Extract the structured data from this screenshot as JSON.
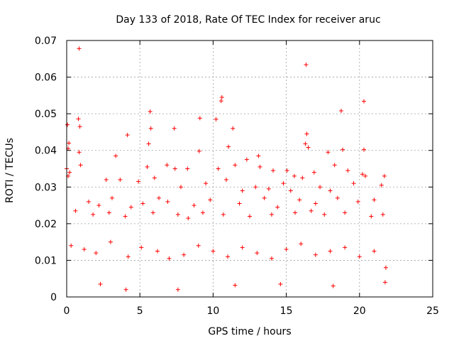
{
  "chart_data": {
    "type": "scatter",
    "title": "Day 133 of 2018, Rate Of TEC Index for receiver aruc",
    "xlabel": "GPS time / hours",
    "ylabel": "ROTI / TECUs",
    "xlim": [
      0,
      25
    ],
    "ylim": [
      0,
      0.07
    ],
    "xticks": [
      "0",
      "5",
      "10",
      "15",
      "20",
      "25"
    ],
    "yticks": [
      "0",
      "0.01",
      "0.02",
      "0.03",
      "0.04",
      "0.05",
      "0.06",
      "0.07"
    ],
    "grid": true,
    "marker": "+",
    "color": "#ff0000",
    "series": [
      {
        "points": [
          [
            0.85,
            0.0678
          ],
          [
            16.35,
            0.0634
          ],
          [
            10.6,
            0.0545
          ],
          [
            10.55,
            0.0535
          ],
          [
            5.7,
            0.0506
          ],
          [
            18.75,
            0.0508
          ],
          [
            20.3,
            0.0534
          ],
          [
            9.1,
            0.0488
          ],
          [
            0.8,
            0.0486
          ],
          [
            10.2,
            0.0485
          ],
          [
            0.9,
            0.0465
          ],
          [
            4.15,
            0.0442
          ],
          [
            7.35,
            0.046
          ],
          [
            11.35,
            0.046
          ],
          [
            5.75,
            0.046
          ],
          [
            16.4,
            0.0445
          ],
          [
            0.15,
            0.042
          ],
          [
            0.1,
            0.0405
          ],
          [
            0.05,
            0.047
          ],
          [
            5.6,
            0.0418
          ],
          [
            9.05,
            0.0398
          ],
          [
            11.05,
            0.041
          ],
          [
            16.3,
            0.0418
          ],
          [
            16.5,
            0.0408
          ],
          [
            18.85,
            0.0402
          ],
          [
            20.3,
            0.0402
          ],
          [
            3.35,
            0.0385
          ],
          [
            13.1,
            0.0385
          ],
          [
            17.85,
            0.0395
          ],
          [
            0.85,
            0.0395
          ],
          [
            0.0,
            0.035
          ],
          [
            0.2,
            0.034
          ],
          [
            0.1,
            0.033
          ],
          [
            0.95,
            0.036
          ],
          [
            5.5,
            0.0355
          ],
          [
            6.85,
            0.036
          ],
          [
            7.4,
            0.035
          ],
          [
            8.25,
            0.035
          ],
          [
            10.35,
            0.035
          ],
          [
            11.5,
            0.036
          ],
          [
            12.3,
            0.0375
          ],
          [
            13.2,
            0.0355
          ],
          [
            14.1,
            0.0345
          ],
          [
            15.05,
            0.0345
          ],
          [
            15.55,
            0.033
          ],
          [
            16.9,
            0.034
          ],
          [
            18.3,
            0.036
          ],
          [
            19.2,
            0.0345
          ],
          [
            20.2,
            0.0335
          ],
          [
            20.4,
            0.033
          ],
          [
            21.7,
            0.033
          ],
          [
            2.7,
            0.032
          ],
          [
            3.65,
            0.032
          ],
          [
            4.9,
            0.0315
          ],
          [
            6.0,
            0.0325
          ],
          [
            7.8,
            0.03
          ],
          [
            9.5,
            0.031
          ],
          [
            10.9,
            0.032
          ],
          [
            12.0,
            0.029
          ],
          [
            12.9,
            0.03
          ],
          [
            13.8,
            0.0295
          ],
          [
            14.8,
            0.031
          ],
          [
            15.3,
            0.029
          ],
          [
            16.1,
            0.0325
          ],
          [
            17.3,
            0.03
          ],
          [
            18.0,
            0.029
          ],
          [
            19.6,
            0.031
          ],
          [
            21.5,
            0.0305
          ],
          [
            1.5,
            0.026
          ],
          [
            2.2,
            0.025
          ],
          [
            3.1,
            0.027
          ],
          [
            4.4,
            0.0245
          ],
          [
            5.2,
            0.0255
          ],
          [
            6.3,
            0.027
          ],
          [
            6.9,
            0.026
          ],
          [
            8.7,
            0.025
          ],
          [
            9.8,
            0.0265
          ],
          [
            11.8,
            0.0255
          ],
          [
            13.5,
            0.027
          ],
          [
            14.4,
            0.0245
          ],
          [
            15.9,
            0.0265
          ],
          [
            17.0,
            0.0255
          ],
          [
            18.5,
            0.027
          ],
          [
            19.9,
            0.026
          ],
          [
            21.0,
            0.0265
          ],
          [
            0.6,
            0.0235
          ],
          [
            1.8,
            0.0225
          ],
          [
            2.9,
            0.023
          ],
          [
            4.0,
            0.022
          ],
          [
            5.9,
            0.023
          ],
          [
            7.6,
            0.0225
          ],
          [
            8.3,
            0.0215
          ],
          [
            9.3,
            0.023
          ],
          [
            10.7,
            0.0225
          ],
          [
            12.5,
            0.022
          ],
          [
            14.0,
            0.0225
          ],
          [
            15.6,
            0.023
          ],
          [
            16.7,
            0.0235
          ],
          [
            17.6,
            0.0225
          ],
          [
            19.0,
            0.023
          ],
          [
            20.8,
            0.022
          ],
          [
            21.6,
            0.0225
          ],
          [
            0.3,
            0.014
          ],
          [
            1.2,
            0.013
          ],
          [
            2.0,
            0.012
          ],
          [
            3.0,
            0.015
          ],
          [
            4.2,
            0.011
          ],
          [
            5.1,
            0.0135
          ],
          [
            6.2,
            0.0125
          ],
          [
            7.0,
            0.0105
          ],
          [
            8.0,
            0.0115
          ],
          [
            9.0,
            0.014
          ],
          [
            10.0,
            0.0125
          ],
          [
            11.0,
            0.011
          ],
          [
            12.0,
            0.0135
          ],
          [
            13.0,
            0.012
          ],
          [
            14.0,
            0.0105
          ],
          [
            15.0,
            0.013
          ],
          [
            16.0,
            0.0145
          ],
          [
            17.0,
            0.0115
          ],
          [
            18.0,
            0.0125
          ],
          [
            19.0,
            0.0135
          ],
          [
            20.0,
            0.011
          ],
          [
            21.0,
            0.0125
          ],
          [
            21.8,
            0.008
          ],
          [
            4.05,
            0.002
          ],
          [
            7.6,
            0.002
          ],
          [
            2.3,
            0.0035
          ],
          [
            11.5,
            0.0032
          ],
          [
            14.6,
            0.0035
          ],
          [
            18.2,
            0.003
          ],
          [
            21.75,
            0.004
          ]
        ]
      }
    ]
  }
}
